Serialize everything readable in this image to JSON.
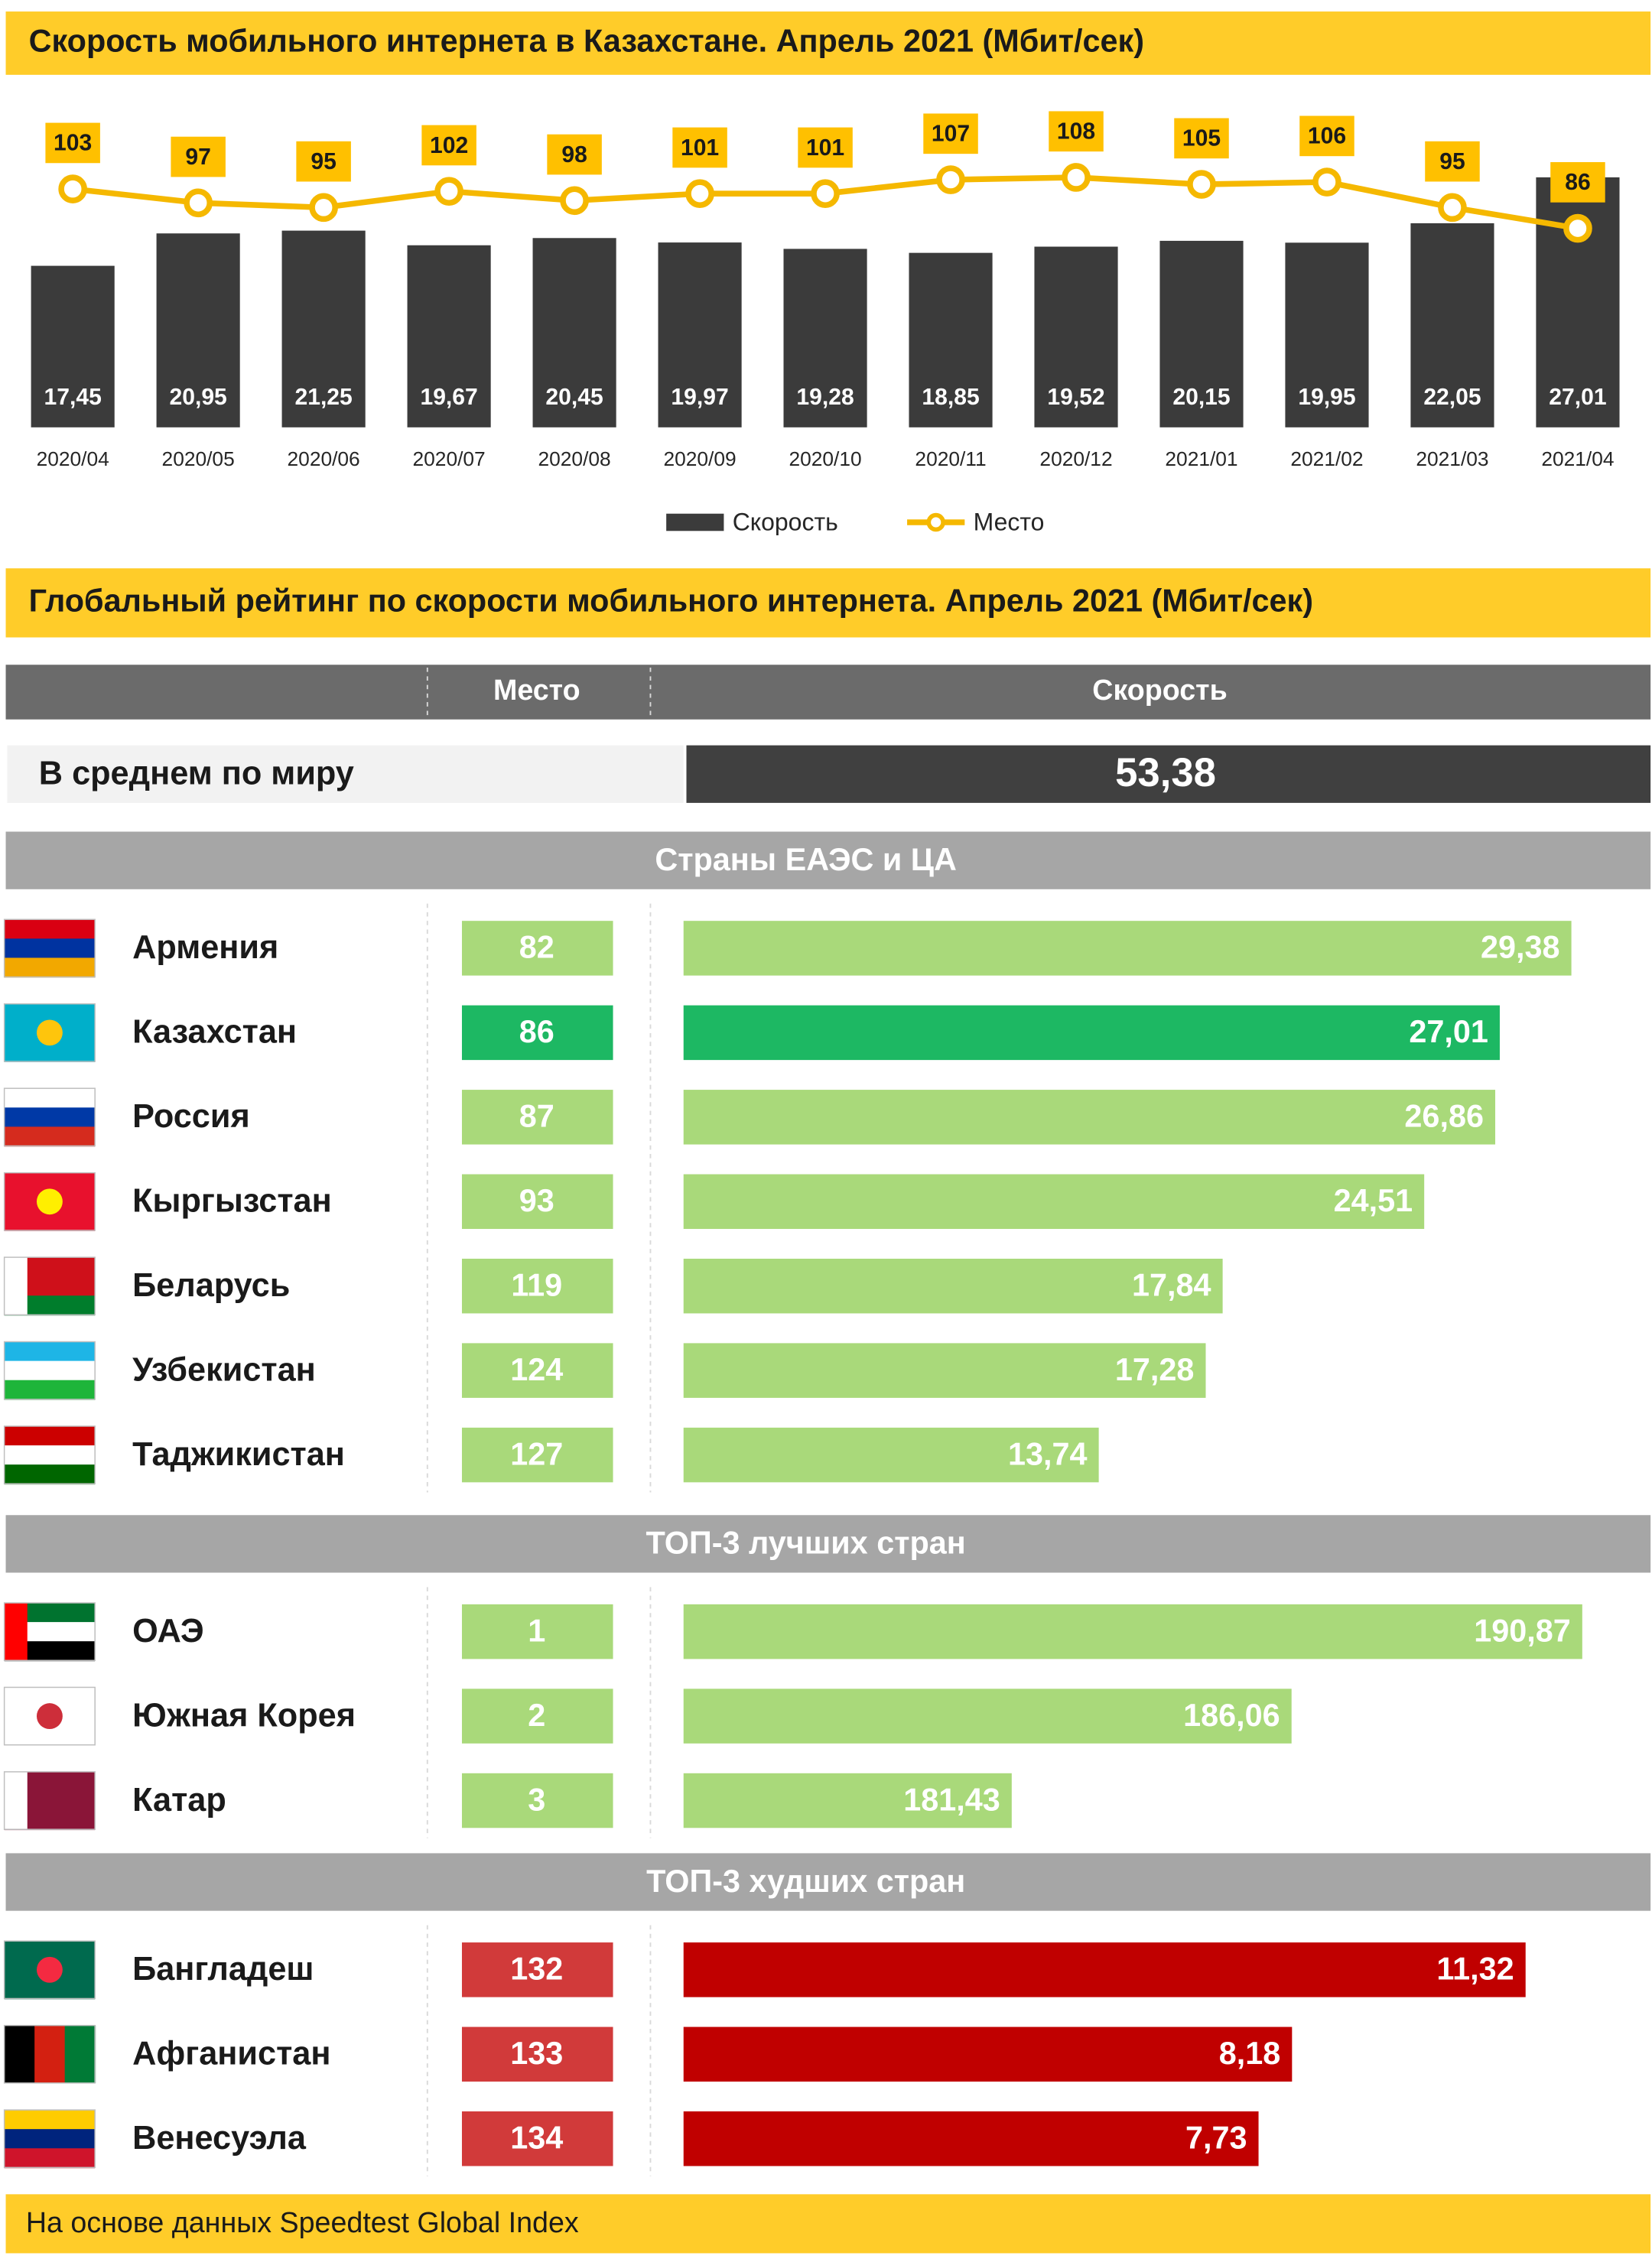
{
  "chart_data": {
    "type": "bar",
    "title": "Скорость мобильного интернета в Казахстане. Апрель 2021 (Мбит/сек)",
    "categories": [
      "2020/04",
      "2020/05",
      "2020/06",
      "2020/07",
      "2020/08",
      "2020/09",
      "2020/10",
      "2020/11",
      "2020/12",
      "2021/01",
      "2021/02",
      "2021/03",
      "2021/04"
    ],
    "series": [
      {
        "name": "Скорость",
        "type": "bar",
        "color": "#3b3b3b",
        "values": [
          17.45,
          20.95,
          21.25,
          19.67,
          20.45,
          19.97,
          19.28,
          18.85,
          19.52,
          20.15,
          19.95,
          22.05,
          27.01
        ],
        "value_labels": [
          "17,45",
          "20,95",
          "21,25",
          "19,67",
          "20,45",
          "19,97",
          "19,28",
          "18,85",
          "19,52",
          "20,15",
          "19,95",
          "22,05",
          "27,01"
        ]
      },
      {
        "name": "Место",
        "type": "line",
        "axis": "y2",
        "color": "#f5b800",
        "values": [
          103,
          97,
          95,
          102,
          98,
          101,
          101,
          107,
          108,
          105,
          106,
          95,
          86
        ]
      }
    ],
    "ylim": [
      0,
      30
    ],
    "y2lim": [
      0,
      120
    ],
    "legend": "bottom"
  },
  "ranking": {
    "title": "Глобальный рейтинг по скорости мобильного интернета. Апрель 2021 (Мбит/сек)",
    "columns": [
      "Место",
      "Скорость"
    ],
    "world": {
      "label": "В среднем по миру",
      "speed": 53.38,
      "speed_label": "53,38"
    },
    "groups": [
      {
        "title": "Страны ЕАЭС и ЦА",
        "color": "#a9d97a",
        "rank_color": "#a9d97a",
        "xlim": [
          0,
          32
        ],
        "rows": [
          {
            "country": "Армения",
            "rank": 82,
            "speed": 29.38,
            "speed_label": "29,38"
          },
          {
            "country": "Казахстан",
            "rank": 86,
            "speed": 27.01,
            "speed_label": "27,01",
            "color": "#1db863"
          },
          {
            "country": "Россия",
            "rank": 87,
            "speed": 26.86,
            "speed_label": "26,86"
          },
          {
            "country": "Кыргызстан",
            "rank": 93,
            "speed": 24.51,
            "speed_label": "24,51"
          },
          {
            "country": "Беларусь",
            "rank": 119,
            "speed": 17.84,
            "speed_label": "17,84"
          },
          {
            "country": "Узбекистан",
            "rank": 124,
            "speed": 17.28,
            "speed_label": "17,28"
          },
          {
            "country": "Таджикистан",
            "rank": 127,
            "speed": 13.74,
            "speed_label": "13,74"
          }
        ]
      },
      {
        "title": "ТОП-3 лучших стран",
        "color": "#a9d97a",
        "rank_color": "#a9d97a",
        "xlim": [
          176,
          192
        ],
        "rows": [
          {
            "country": "ОАЭ",
            "rank": 1,
            "speed": 190.87,
            "speed_label": "190,87"
          },
          {
            "country": "Южная Корея",
            "rank": 2,
            "speed": 186.06,
            "speed_label": "186,06"
          },
          {
            "country": "Катар",
            "rank": 3,
            "speed": 181.43,
            "speed_label": "181,43"
          }
        ]
      },
      {
        "title": "ТОП-3 худших стран",
        "color": "#c00000",
        "rank_color": "#d13a3a",
        "xlim": [
          0,
          13
        ],
        "rows": [
          {
            "country": "Бангладеш",
            "rank": 132,
            "speed": 11.32,
            "speed_label": "11,32"
          },
          {
            "country": "Афганистан",
            "rank": 133,
            "speed": 8.18,
            "speed_label": "8,18"
          },
          {
            "country": "Венесуэла",
            "rank": 134,
            "speed": 7.73,
            "speed_label": "7,73"
          }
        ]
      }
    ]
  },
  "footer": {
    "source": "На основе данных Speedtest Global Index"
  }
}
